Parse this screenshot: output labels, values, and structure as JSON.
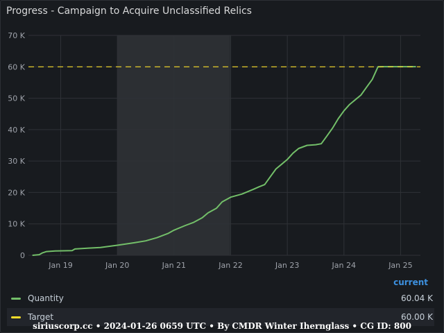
{
  "panel": {
    "title": "Progress - Campaign to Acquire Unclassified Relics"
  },
  "legend": {
    "header": "current",
    "items": [
      {
        "name": "Quantity",
        "value": "60.04 K",
        "color": "#73bf69"
      },
      {
        "name": "Target",
        "value": "60.00 K",
        "color": "#fade2a"
      }
    ]
  },
  "footer": "siriuscorp.cc • 2024-01-26 0659 UTC • By CMDR Winter Ihernglass • CG ID: 800",
  "chart_data": {
    "type": "line",
    "x_ticks": [
      "Jan 19",
      "Jan 20",
      "Jan 21",
      "Jan 22",
      "Jan 23",
      "Jan 24",
      "Jan 25"
    ],
    "x_tick_values": [
      19,
      20,
      21,
      22,
      23,
      24,
      25
    ],
    "y_ticks": [
      "0",
      "10 K",
      "20 K",
      "30 K",
      "40 K",
      "50 K",
      "60 K",
      "70 K"
    ],
    "y_tick_values": [
      0,
      10000,
      20000,
      30000,
      40000,
      50000,
      60000,
      70000
    ],
    "xlim": [
      18.43,
      25.35
    ],
    "ylim": [
      0,
      70000
    ],
    "grid": true,
    "highlight_band": [
      20.0,
      21.99
    ],
    "series": [
      {
        "name": "Quantity",
        "color": "#73bf69",
        "x": [
          18.5,
          18.62,
          18.68,
          18.75,
          18.9,
          19.2,
          19.25,
          19.5,
          19.7,
          20.0,
          20.3,
          20.5,
          20.7,
          20.9,
          21.0,
          21.2,
          21.35,
          21.5,
          21.6,
          21.75,
          21.85,
          22.0,
          22.2,
          22.4,
          22.5,
          22.6,
          22.7,
          22.8,
          22.9,
          23.0,
          23.1,
          23.2,
          23.35,
          23.5,
          23.6,
          23.7,
          23.8,
          23.9,
          24.0,
          24.1,
          24.2,
          24.3,
          24.4,
          24.5,
          24.6,
          24.7,
          24.75,
          24.8,
          25.0,
          25.27
        ],
        "y": [
          0,
          200,
          800,
          1200,
          1400,
          1500,
          2000,
          2300,
          2500,
          3200,
          4000,
          4600,
          5600,
          7000,
          8000,
          9500,
          10500,
          12000,
          13500,
          15000,
          17000,
          18500,
          19500,
          21000,
          21800,
          22500,
          25000,
          27500,
          29000,
          30500,
          32500,
          34000,
          35000,
          35200,
          35500,
          38000,
          40500,
          43500,
          46000,
          48000,
          49500,
          51000,
          53500,
          56000,
          60000,
          60040,
          60040,
          60040,
          60040,
          60040
        ]
      },
      {
        "name": "Target",
        "color": "#fade2a",
        "x": [
          18.43,
          25.35
        ],
        "y": [
          60000,
          60000
        ]
      }
    ]
  }
}
